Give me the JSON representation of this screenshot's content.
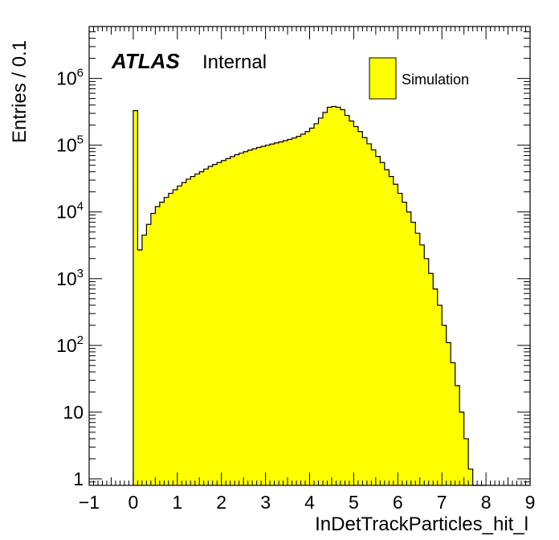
{
  "chart_data": {
    "type": "histogram",
    "x_axis": {
      "label": "InDetTrackParticles_hit_l",
      "range": [
        -1,
        9
      ],
      "ticks": [
        -1,
        0,
        1,
        2,
        3,
        4,
        5,
        6,
        7,
        8,
        9
      ],
      "tick_labels": [
        "−1",
        "0",
        "1",
        "2",
        "3",
        "4",
        "5",
        "6",
        "7",
        "8",
        "9"
      ]
    },
    "y_axis": {
      "label": "Entries / 0.1",
      "scale": "log",
      "range": [
        0.8,
        6000000
      ],
      "ticks": [
        1,
        10,
        100,
        1000,
        10000,
        100000,
        1000000
      ],
      "tick_labels": [
        "1",
        "10",
        "10^2",
        "10^3",
        "10^4",
        "10^5",
        "10^6"
      ]
    },
    "atlas_label": {
      "bold": "ATLAS",
      "text": "Internal"
    },
    "legend": {
      "entries": [
        {
          "label": "Simulation",
          "color": "#ffff00"
        }
      ],
      "position": "top-right"
    },
    "series": [
      {
        "name": "Simulation",
        "color": "#ffff00",
        "bin_width": 0.1,
        "bin_start": 0.0,
        "values": [
          330000,
          2700,
          4500,
          6500,
          9500,
          12000,
          14000,
          16500,
          19000,
          21500,
          24500,
          27500,
          31000,
          34000,
          37000,
          40000,
          44000,
          48000,
          51500,
          55000,
          59000,
          63000,
          67500,
          72000,
          76000,
          80000,
          84500,
          88500,
          92500,
          96000,
          100000,
          104000,
          108000,
          112000,
          117000,
          122000,
          128000,
          136000,
          146000,
          160000,
          180000,
          210000,
          255000,
          310000,
          370000,
          380000,
          370000,
          340000,
          280000,
          230000,
          190000,
          160000,
          130000,
          105000,
          85000,
          68000,
          55000,
          43000,
          34000,
          26000,
          19000,
          14000,
          10000,
          7000,
          4800,
          3200,
          2000,
          1200,
          700,
          400,
          200,
          110,
          55,
          25,
          10,
          4,
          1.4,
          0,
          0,
          0
        ]
      }
    ]
  }
}
